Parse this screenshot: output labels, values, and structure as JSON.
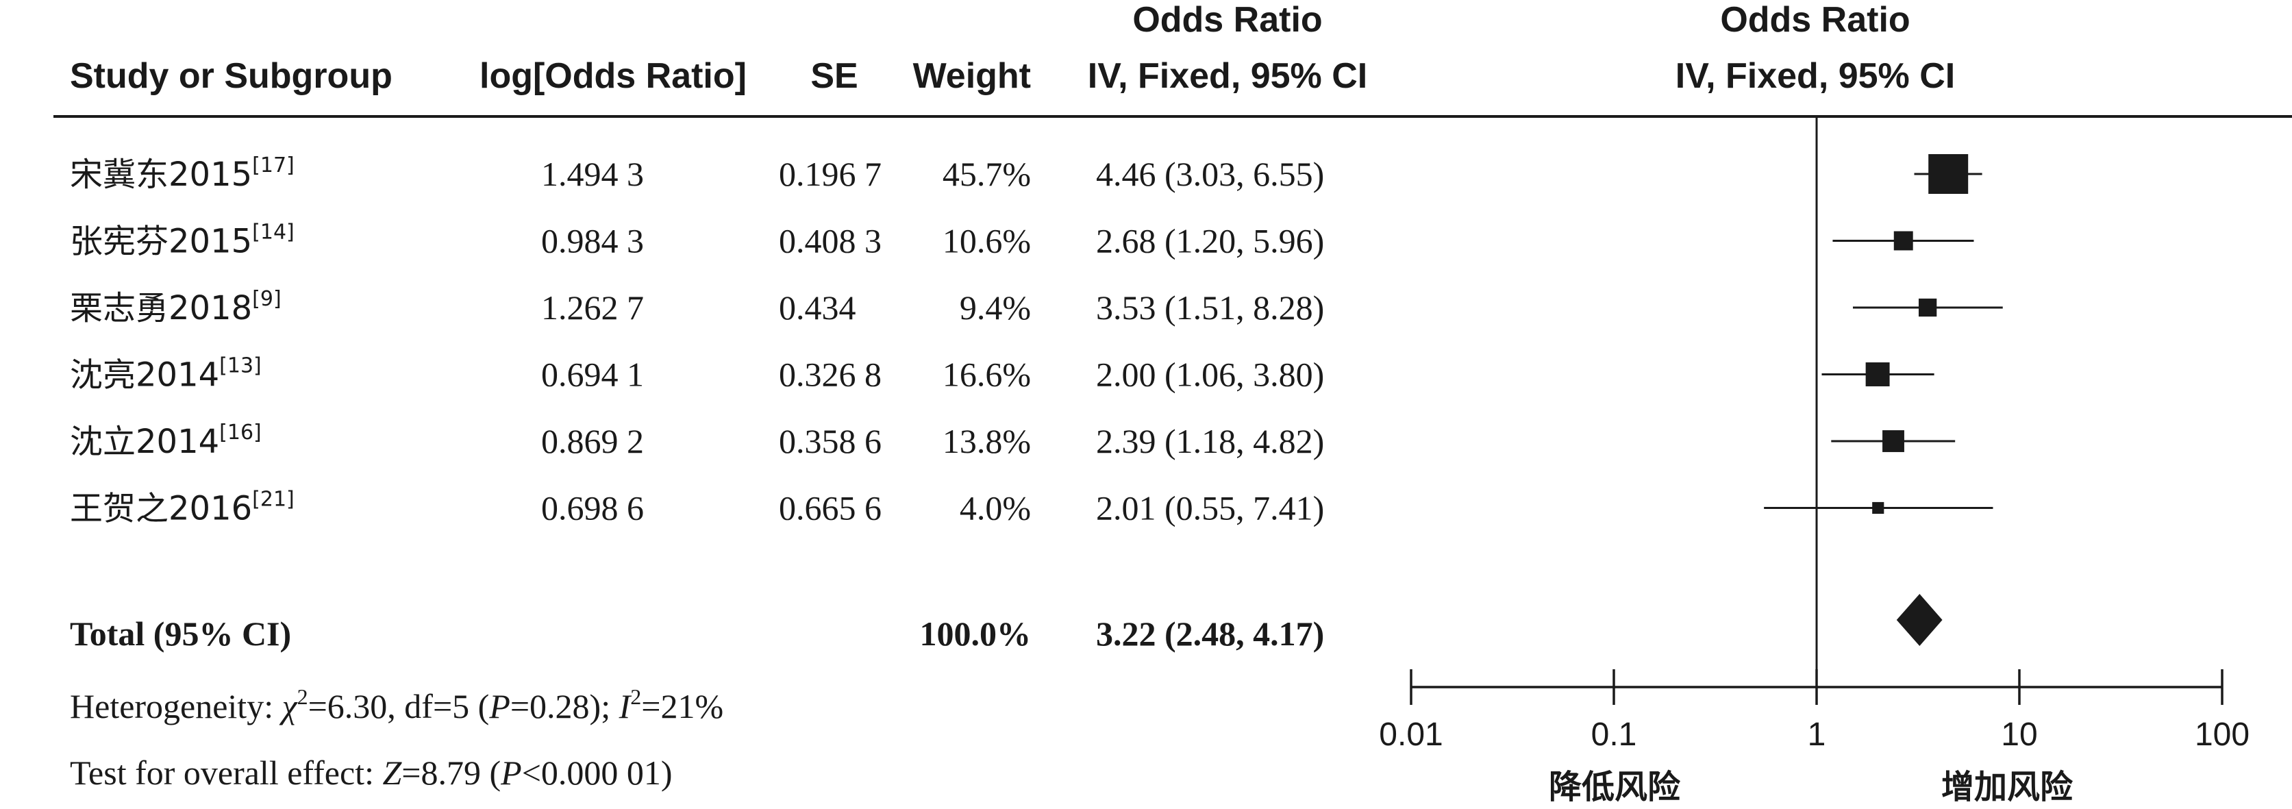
{
  "headers": {
    "study": "Study or Subgroup",
    "log_or": "log[Odds Ratio]",
    "se": "SE",
    "weight": "Weight",
    "or_title": "Odds Ratio",
    "or_method": "IV, Fixed, 95% CI",
    "plot_title": "Odds Ratio",
    "plot_method": "IV, Fixed, 95% CI"
  },
  "total": {
    "label": "Total (95% CI)",
    "weight": "100.0%",
    "ci_text": "3.22 (2.48, 4.17)"
  },
  "heterogeneity": {
    "prefix": "Heterogeneity: ",
    "chi": "χ",
    "chi_sup": "2",
    "chi_rest": "=6.30, df=5 (",
    "p": "P",
    "p_rest": "=0.28); ",
    "i": "I",
    "i_sup": "2",
    "i_rest": "=21%"
  },
  "overall_effect": {
    "prefix": "Test for overall effect: ",
    "z": "Z",
    "z_rest": "=8.79 (",
    "p": "P",
    "p_rest": "<0.000 01)"
  },
  "axis_labels": {
    "left": "降低风险",
    "right": "增加风险"
  },
  "chart_data": {
    "type": "forest",
    "x_scale": "log",
    "xlim": [
      0.01,
      100
    ],
    "reference_line": 1,
    "ticks": [
      0.01,
      0.1,
      1,
      10,
      100
    ],
    "tick_labels": [
      "0.01",
      "0.1",
      "1",
      "10",
      "100"
    ],
    "studies": [
      {
        "name": "宋冀东2015",
        "ref": "[17]",
        "log_or": "1.494 3",
        "se": "0.196 7",
        "weight_label": "45.7%",
        "ci_text": "4.46 (3.03, 6.55)",
        "or": 4.46,
        "lower": 3.03,
        "upper": 6.55,
        "weight": 45.7
      },
      {
        "name": "张宪芬2015",
        "ref": "[14]",
        "log_or": "0.984 3",
        "se": "0.408 3",
        "weight_label": "10.6%",
        "ci_text": "2.68 (1.20, 5.96)",
        "or": 2.68,
        "lower": 1.2,
        "upper": 5.96,
        "weight": 10.6
      },
      {
        "name": "栗志勇2018",
        "ref": "[9]",
        "log_or": "1.262 7",
        "se": "0.434",
        "weight_label": "9.4%",
        "ci_text": "3.53 (1.51, 8.28)",
        "or": 3.53,
        "lower": 1.51,
        "upper": 8.28,
        "weight": 9.4
      },
      {
        "name": "沈亮2014",
        "ref": "[13]",
        "log_or": "0.694 1",
        "se": "0.326 8",
        "weight_label": "16.6%",
        "ci_text": "2.00 (1.06, 3.80)",
        "or": 2.0,
        "lower": 1.06,
        "upper": 3.8,
        "weight": 16.6
      },
      {
        "name": "沈立2014",
        "ref": "[16]",
        "log_or": "0.869 2",
        "se": "0.358 6",
        "weight_label": "13.8%",
        "ci_text": "2.39 (1.18, 4.82)",
        "or": 2.39,
        "lower": 1.18,
        "upper": 4.82,
        "weight": 13.8
      },
      {
        "name": "王贺之2016",
        "ref": "[21]",
        "log_or": "0.698 6",
        "se": "0.665 6",
        "weight_label": "4.0%",
        "ci_text": "2.01 (0.55, 7.41)",
        "or": 2.01,
        "lower": 0.55,
        "upper": 7.41,
        "weight": 4.0
      }
    ],
    "pooled": {
      "or": 3.22,
      "lower": 2.48,
      "upper": 4.17
    }
  }
}
